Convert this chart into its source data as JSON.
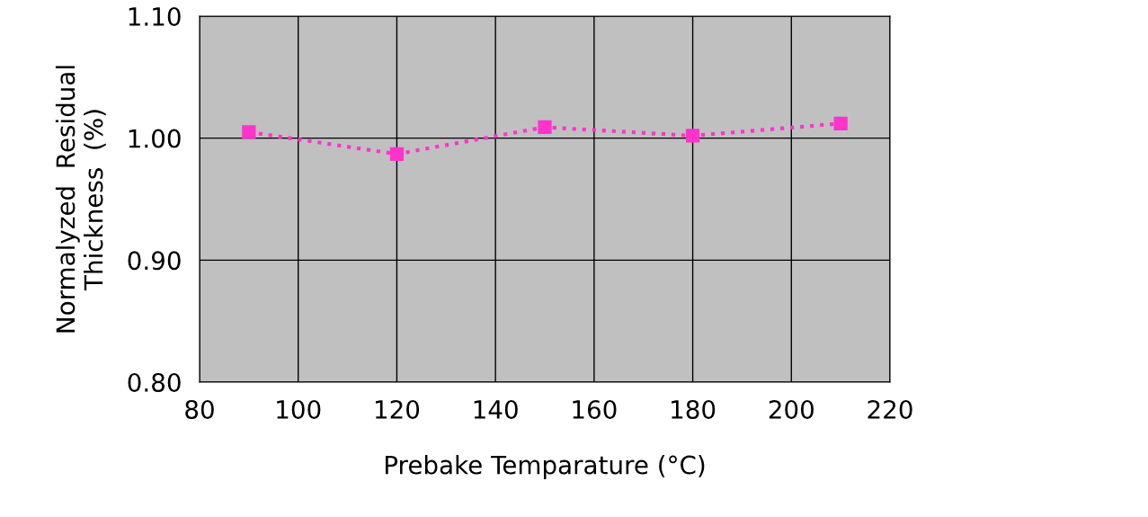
{
  "chart_data": {
    "type": "line",
    "xlabel": "Prebake Temparature (°C)",
    "ylabel": "Normalyzed  Residual\nThickness  (%)",
    "x": [
      90,
      120,
      150,
      180,
      210
    ],
    "series": [
      {
        "color": "#ff33cc",
        "values": [
          1.005,
          0.987,
          1.009,
          1.002,
          1.012
        ]
      }
    ],
    "xlim": [
      80,
      220
    ],
    "xticks": [
      80,
      100,
      120,
      140,
      160,
      180,
      200,
      220
    ],
    "ylim": [
      0.8,
      1.1
    ],
    "yticks": [
      {
        "value": 0.8,
        "label": "0.80"
      },
      {
        "value": 0.9,
        "label": "0.90"
      },
      {
        "value": 1.0,
        "label": "1.00"
      },
      {
        "value": 1.1,
        "label": "1.10"
      }
    ],
    "grid": true,
    "marker": "square",
    "line_style": "dotted"
  }
}
